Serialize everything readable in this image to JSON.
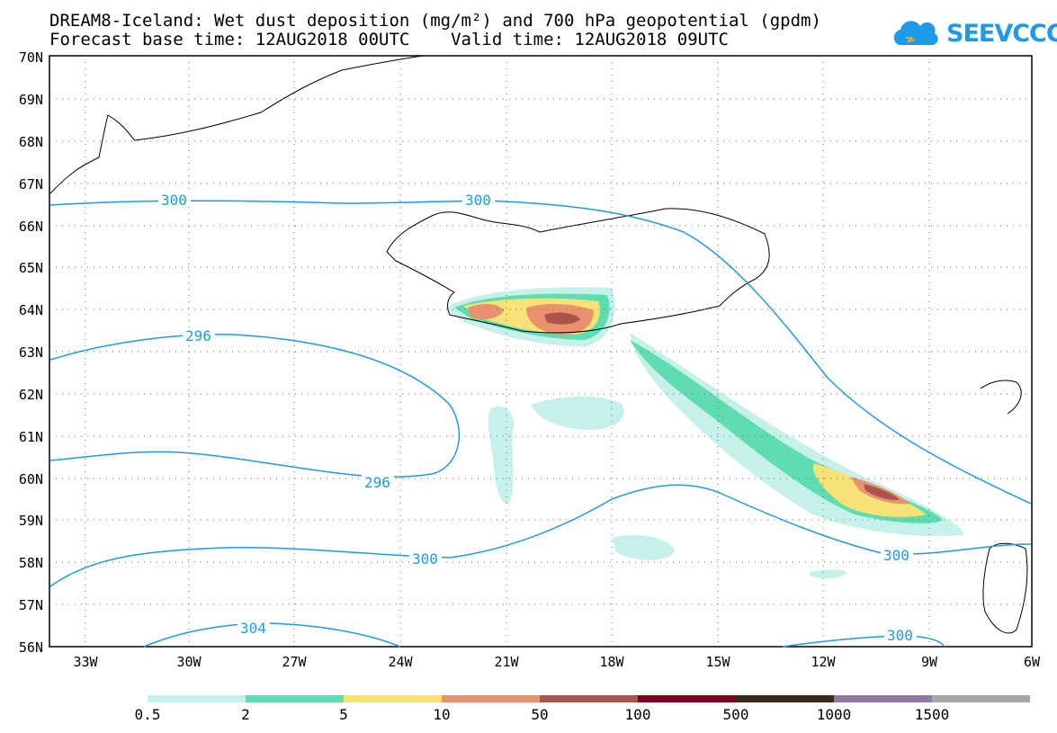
{
  "header": {
    "title_line1": "DREAM8-Iceland: Wet dust deposition (mg/m²) and 700 hPa geopotential (gpdm)",
    "title_line2": "Forecast base time: 12AUG2018 00UTC    Valid time: 12AUG2018 09UTC"
  },
  "logo": {
    "text": "SEEVCCC",
    "icon": "cloud-logo-icon",
    "color": "#1e9be8"
  },
  "map": {
    "lat_labels": [
      "70N",
      "69N",
      "68N",
      "67N",
      "66N",
      "65N",
      "64N",
      "63N",
      "62N",
      "61N",
      "60N",
      "59N",
      "58N",
      "57N",
      "56N"
    ],
    "lon_labels": [
      "33W",
      "30W",
      "27W",
      "24W",
      "21W",
      "18W",
      "15W",
      "12W",
      "9W",
      "6W"
    ],
    "contour_labels": [
      "300",
      "300",
      "296",
      "296",
      "300",
      "304",
      "300",
      "300"
    ],
    "contour_color": "#1e9be8"
  },
  "colorbar": {
    "colors": [
      "#c6f1ea",
      "#5fdcb0",
      "#f7e276",
      "#ea9170",
      "#a9554d",
      "#7e0225",
      "#392a1c",
      "#9378a3",
      "#a7a7a7"
    ],
    "labels": [
      "0.5",
      "2",
      "5",
      "10",
      "50",
      "100",
      "500",
      "1000",
      "1500"
    ]
  }
}
